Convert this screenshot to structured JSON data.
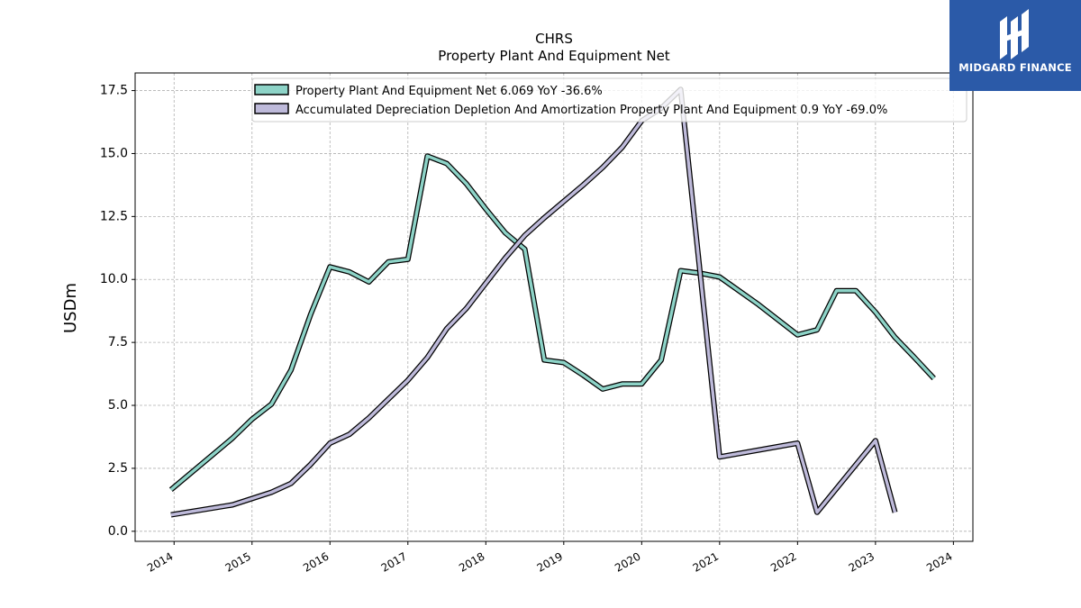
{
  "chart_data": {
    "type": "line",
    "title": "CHRS",
    "subtitle": "Property Plant And Equipment Net",
    "xlabel": "",
    "ylabel": "USDm",
    "xlim": [
      2013.5,
      2024.25
    ],
    "ylim": [
      -0.4,
      18.2
    ],
    "x_ticks": [
      "2014",
      "2015",
      "2016",
      "2017",
      "2018",
      "2019",
      "2020",
      "2021",
      "2022",
      "2023",
      "2024"
    ],
    "y_ticks": [
      "0.0",
      "2.5",
      "5.0",
      "7.5",
      "10.0",
      "12.5",
      "15.0",
      "17.5"
    ],
    "grid": true,
    "legend_position": "top",
    "series": [
      {
        "name": "Property Plant And Equipment Net",
        "legend_label": "Property Plant And Equipment Net  6.069 YoY -36.6%",
        "color": "#8dd3c7",
        "points": [
          [
            2013.96,
            1.65
          ],
          [
            2014.75,
            3.7
          ],
          [
            2015.0,
            4.45
          ],
          [
            2015.25,
            5.05
          ],
          [
            2015.5,
            6.4
          ],
          [
            2015.75,
            8.6
          ],
          [
            2016.0,
            10.5
          ],
          [
            2016.25,
            10.3
          ],
          [
            2016.5,
            9.9
          ],
          [
            2016.75,
            10.7
          ],
          [
            2017.0,
            10.8
          ],
          [
            2017.25,
            14.9
          ],
          [
            2017.5,
            14.6
          ],
          [
            2017.75,
            13.8
          ],
          [
            2018.0,
            12.8
          ],
          [
            2018.25,
            11.85
          ],
          [
            2018.5,
            11.2
          ],
          [
            2018.75,
            6.8
          ],
          [
            2019.0,
            6.7
          ],
          [
            2019.25,
            6.2
          ],
          [
            2019.5,
            5.65
          ],
          [
            2019.75,
            5.85
          ],
          [
            2020.0,
            5.85
          ],
          [
            2020.25,
            6.8
          ],
          [
            2020.5,
            10.35
          ],
          [
            2020.75,
            10.25
          ],
          [
            2021.0,
            10.1
          ],
          [
            2021.5,
            9.0
          ],
          [
            2022.0,
            7.8
          ],
          [
            2022.25,
            8.0
          ],
          [
            2022.5,
            9.55
          ],
          [
            2022.75,
            9.55
          ],
          [
            2023.0,
            8.7
          ],
          [
            2023.25,
            7.7
          ],
          [
            2023.5,
            6.9
          ],
          [
            2023.75,
            6.069
          ]
        ]
      },
      {
        "name": "Accumulated Depreciation Depletion And Amortization Property Plant And Equipment",
        "legend_label": "Accumulated Depreciation Depletion And Amortization Property Plant And Equipment  0.9 YoY -69.0%",
        "color": "#bebada",
        "points": [
          [
            2013.96,
            0.65
          ],
          [
            2014.75,
            1.05
          ],
          [
            2015.25,
            1.55
          ],
          [
            2015.5,
            1.9
          ],
          [
            2015.75,
            2.65
          ],
          [
            2016.0,
            3.5
          ],
          [
            2016.25,
            3.85
          ],
          [
            2016.5,
            4.5
          ],
          [
            2016.75,
            5.25
          ],
          [
            2017.0,
            6.0
          ],
          [
            2017.25,
            6.9
          ],
          [
            2017.5,
            8.05
          ],
          [
            2017.75,
            8.85
          ],
          [
            2018.0,
            9.85
          ],
          [
            2018.25,
            10.85
          ],
          [
            2018.5,
            11.75
          ],
          [
            2018.75,
            12.45
          ],
          [
            2019.0,
            13.1
          ],
          [
            2019.25,
            13.75
          ],
          [
            2019.5,
            14.45
          ],
          [
            2019.75,
            15.25
          ],
          [
            2020.0,
            16.3
          ],
          [
            2020.25,
            16.8
          ],
          [
            2020.5,
            17.55
          ],
          [
            2021.0,
            2.95
          ],
          [
            2022.0,
            3.5
          ],
          [
            2022.25,
            0.75
          ],
          [
            2023.0,
            3.6
          ],
          [
            2023.25,
            0.75
          ]
        ]
      }
    ]
  },
  "logo": {
    "text": "MIDGARD FINANCE",
    "color": "#2b5aa8"
  }
}
